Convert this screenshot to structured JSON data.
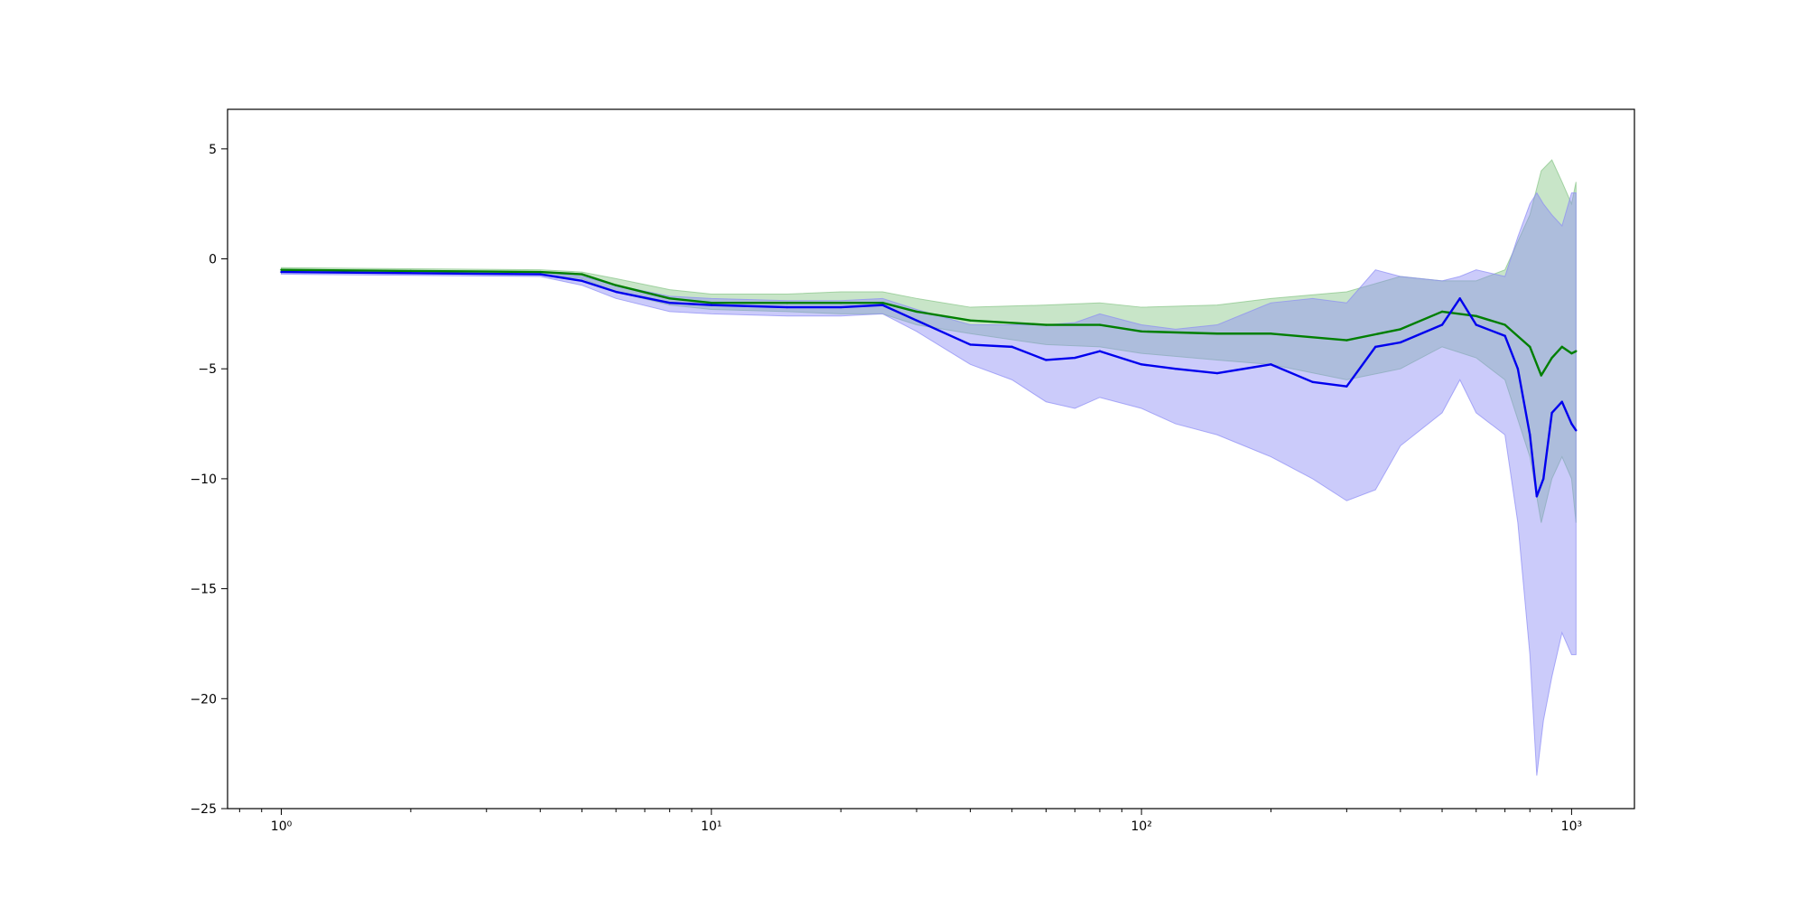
{
  "colors": {
    "background": "#ffffff",
    "axes": "#000000",
    "green_line": "#007f00",
    "green_band": "#86c586",
    "blue_line": "#0000ee",
    "blue_band": "#8c8cf5"
  },
  "chart_data": {
    "type": "line",
    "title": "",
    "xlabel": "",
    "ylabel": "",
    "xscale": "log",
    "xlim": [
      0.75,
      1400
    ],
    "ylim": [
      -25,
      6.8
    ],
    "grid": false,
    "legend": "none",
    "xticks": [
      {
        "value": 1,
        "label": "10⁰"
      },
      {
        "value": 10,
        "label": "10¹"
      },
      {
        "value": 100,
        "label": "10²"
      },
      {
        "value": 1000,
        "label": "10³"
      }
    ],
    "yticks": [
      {
        "value": 5,
        "label": "5"
      },
      {
        "value": 0,
        "label": "0"
      },
      {
        "value": -5,
        "label": "−5"
      },
      {
        "value": -10,
        "label": "−10"
      },
      {
        "value": -15,
        "label": "−15"
      },
      {
        "value": -20,
        "label": "−20"
      },
      {
        "value": -25,
        "label": "−25"
      }
    ],
    "series": [
      {
        "color": "#007f00",
        "band_color": "#86c586",
        "x": [
          1,
          2,
          4,
          5,
          6,
          8,
          10,
          15,
          20,
          25,
          30,
          40,
          60,
          80,
          100,
          150,
          200,
          300,
          400,
          500,
          600,
          700,
          800,
          850,
          900,
          950,
          1000,
          1024
        ],
        "y": [
          -0.5,
          -0.55,
          -0.6,
          -0.7,
          -1.2,
          -1.8,
          -2.0,
          -2.0,
          -2.0,
          -2.0,
          -2.4,
          -2.8,
          -3.0,
          -3.0,
          -3.3,
          -3.4,
          -3.4,
          -3.7,
          -3.2,
          -2.4,
          -2.6,
          -3.0,
          -4.0,
          -5.3,
          -4.5,
          -4.0,
          -4.3,
          -4.2
        ],
        "lower": [
          -0.6,
          -0.65,
          -0.7,
          -0.9,
          -1.5,
          -2.1,
          -2.3,
          -2.4,
          -2.5,
          -2.5,
          -3.0,
          -3.4,
          -3.9,
          -4.0,
          -4.3,
          -4.6,
          -4.8,
          -5.5,
          -5.0,
          -4.0,
          -4.5,
          -5.5,
          -9.0,
          -12.0,
          -10.0,
          -9.0,
          -10.0,
          -12.0
        ],
        "upper": [
          -0.4,
          -0.45,
          -0.5,
          -0.6,
          -0.9,
          -1.4,
          -1.6,
          -1.6,
          -1.5,
          -1.5,
          -1.8,
          -2.2,
          -2.1,
          -2.0,
          -2.2,
          -2.1,
          -1.8,
          -1.5,
          -0.8,
          -1.0,
          -1.0,
          -0.5,
          2.0,
          4.0,
          4.5,
          3.5,
          2.5,
          3.5
        ]
      },
      {
        "color": "#0000ee",
        "band_color": "#8c8cf5",
        "x": [
          1,
          2,
          4,
          5,
          6,
          8,
          10,
          15,
          20,
          25,
          30,
          40,
          50,
          60,
          70,
          80,
          100,
          120,
          150,
          200,
          250,
          300,
          350,
          400,
          500,
          550,
          600,
          700,
          750,
          800,
          830,
          860,
          900,
          950,
          1000,
          1024
        ],
        "y": [
          -0.6,
          -0.65,
          -0.7,
          -1.0,
          -1.5,
          -2.0,
          -2.1,
          -2.2,
          -2.2,
          -2.1,
          -2.8,
          -3.9,
          -4.0,
          -4.6,
          -4.5,
          -4.2,
          -4.8,
          -5.0,
          -5.2,
          -4.8,
          -5.6,
          -5.8,
          -4.0,
          -3.8,
          -3.0,
          -1.8,
          -3.0,
          -3.5,
          -5.0,
          -8.0,
          -10.8,
          -10.0,
          -7.0,
          -6.5,
          -7.5,
          -7.8
        ],
        "lower": [
          -0.7,
          -0.75,
          -0.8,
          -1.2,
          -1.8,
          -2.4,
          -2.5,
          -2.6,
          -2.6,
          -2.5,
          -3.3,
          -4.8,
          -5.5,
          -6.5,
          -6.8,
          -6.3,
          -6.8,
          -7.5,
          -8.0,
          -9.0,
          -10.0,
          -11.0,
          -10.5,
          -8.5,
          -7.0,
          -5.5,
          -7.0,
          -8.0,
          -12.0,
          -18.0,
          -23.5,
          -21.0,
          -19.0,
          -17.0,
          -18.0,
          -18.0
        ],
        "upper": [
          -0.5,
          -0.55,
          -0.6,
          -0.8,
          -1.2,
          -1.7,
          -1.8,
          -1.9,
          -1.9,
          -1.8,
          -2.3,
          -3.0,
          -3.0,
          -3.0,
          -2.9,
          -2.5,
          -3.0,
          -3.2,
          -3.0,
          -2.0,
          -1.8,
          -2.0,
          -0.5,
          -0.8,
          -1.0,
          -0.8,
          -0.5,
          -0.8,
          1.0,
          2.5,
          3.0,
          2.5,
          2.0,
          1.5,
          3.0,
          3.0
        ]
      }
    ]
  }
}
